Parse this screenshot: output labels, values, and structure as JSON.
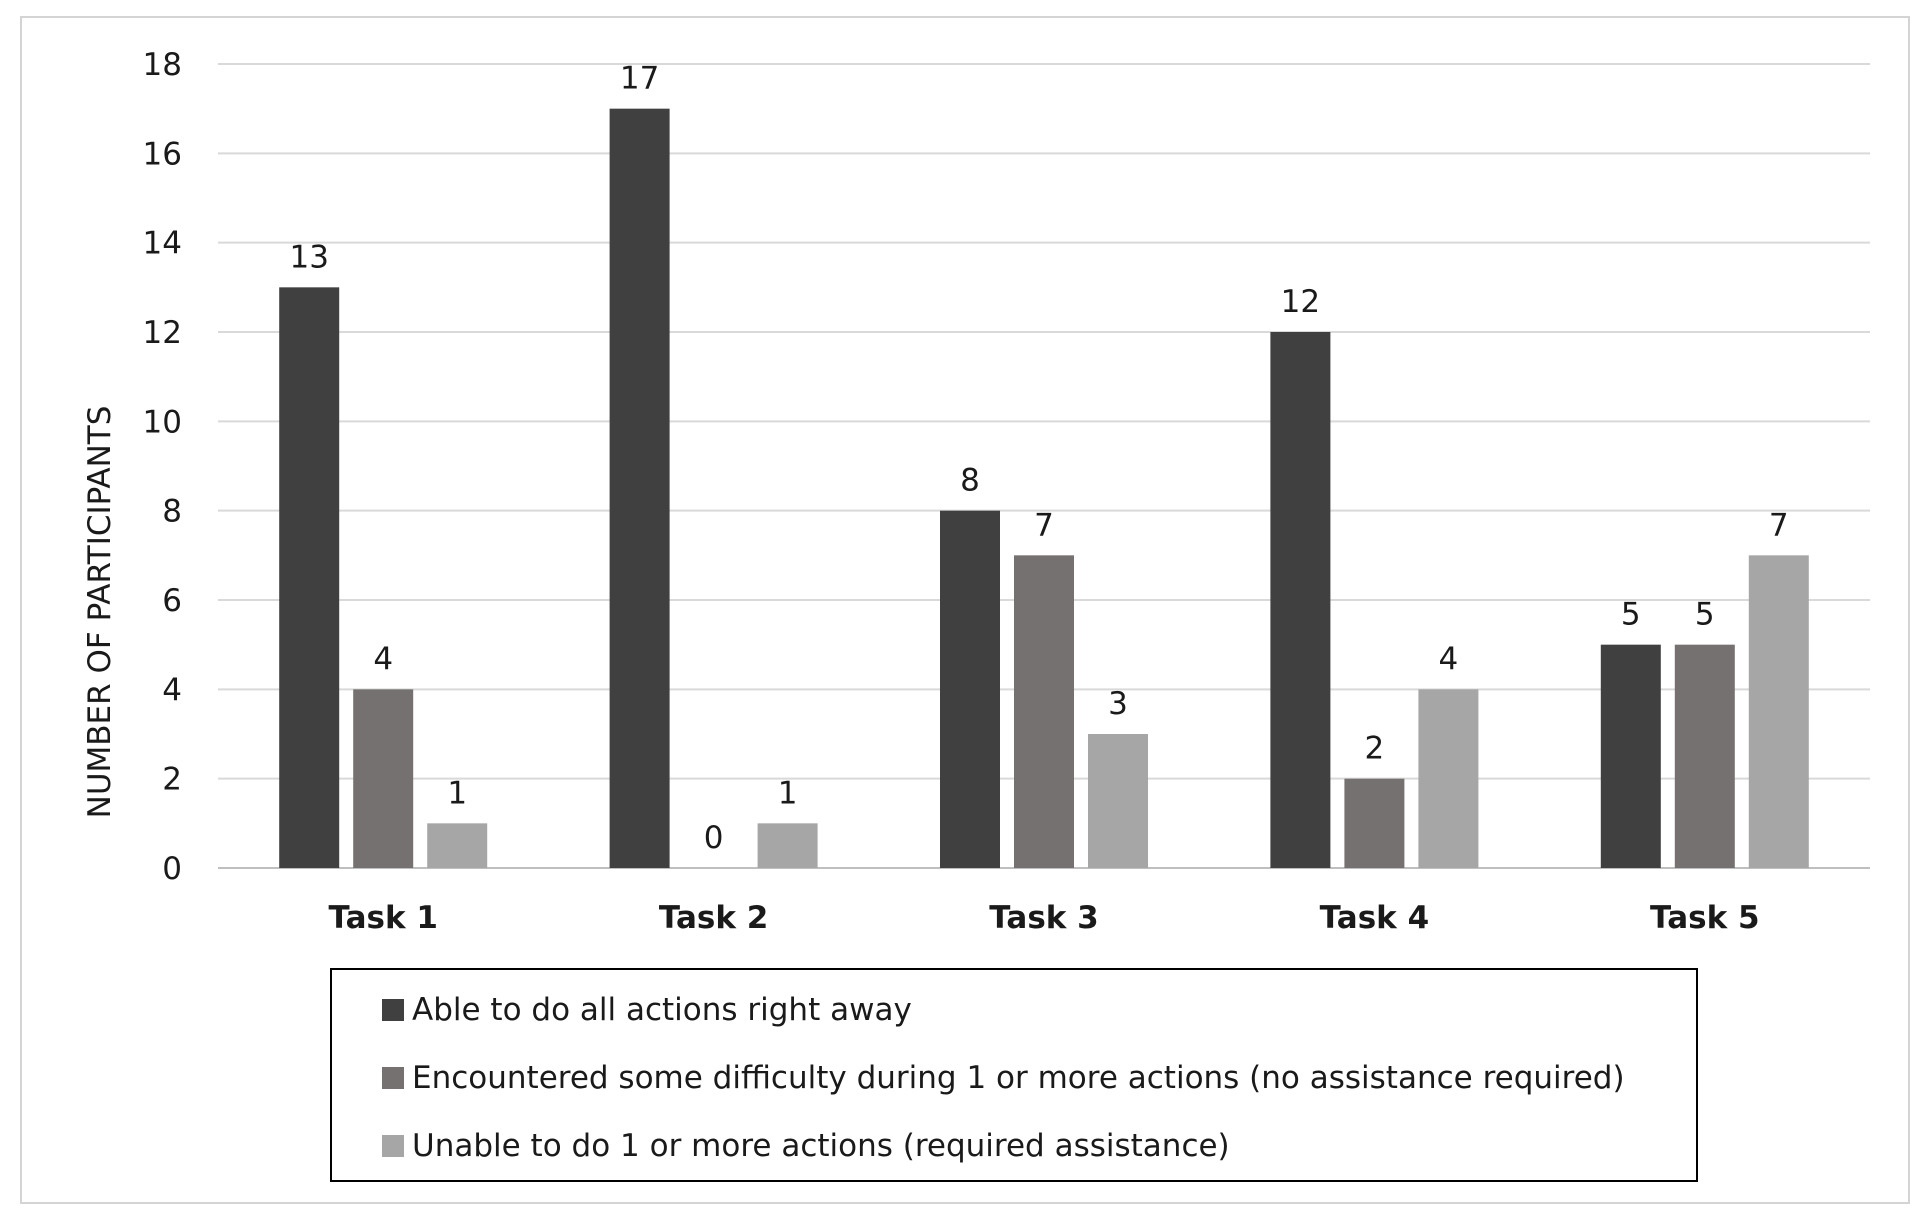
{
  "chart_data": {
    "type": "bar",
    "title": "",
    "xlabel": "",
    "ylabel": "NUMBER OF PARTICIPANTS",
    "ylim": [
      0,
      18
    ],
    "yticks": [
      0,
      2,
      4,
      6,
      8,
      10,
      12,
      14,
      16,
      18
    ],
    "grid": "horizontal",
    "legend_position": "bottom",
    "categories": [
      "Task 1",
      "Task 2",
      "Task 3",
      "Task 4",
      "Task 5"
    ],
    "series": [
      {
        "name": "Able to do all actions right away",
        "color": "#404040",
        "values": [
          13,
          17,
          8,
          12,
          5
        ]
      },
      {
        "name": "Encountered some difficulty during 1 or more actions (no assistance required)",
        "color": "#767171",
        "values": [
          4,
          0,
          7,
          2,
          5
        ]
      },
      {
        "name": "Unable to do 1 or more actions (required assistance)",
        "color": "#a6a6a6",
        "values": [
          1,
          1,
          3,
          4,
          7
        ]
      }
    ]
  }
}
